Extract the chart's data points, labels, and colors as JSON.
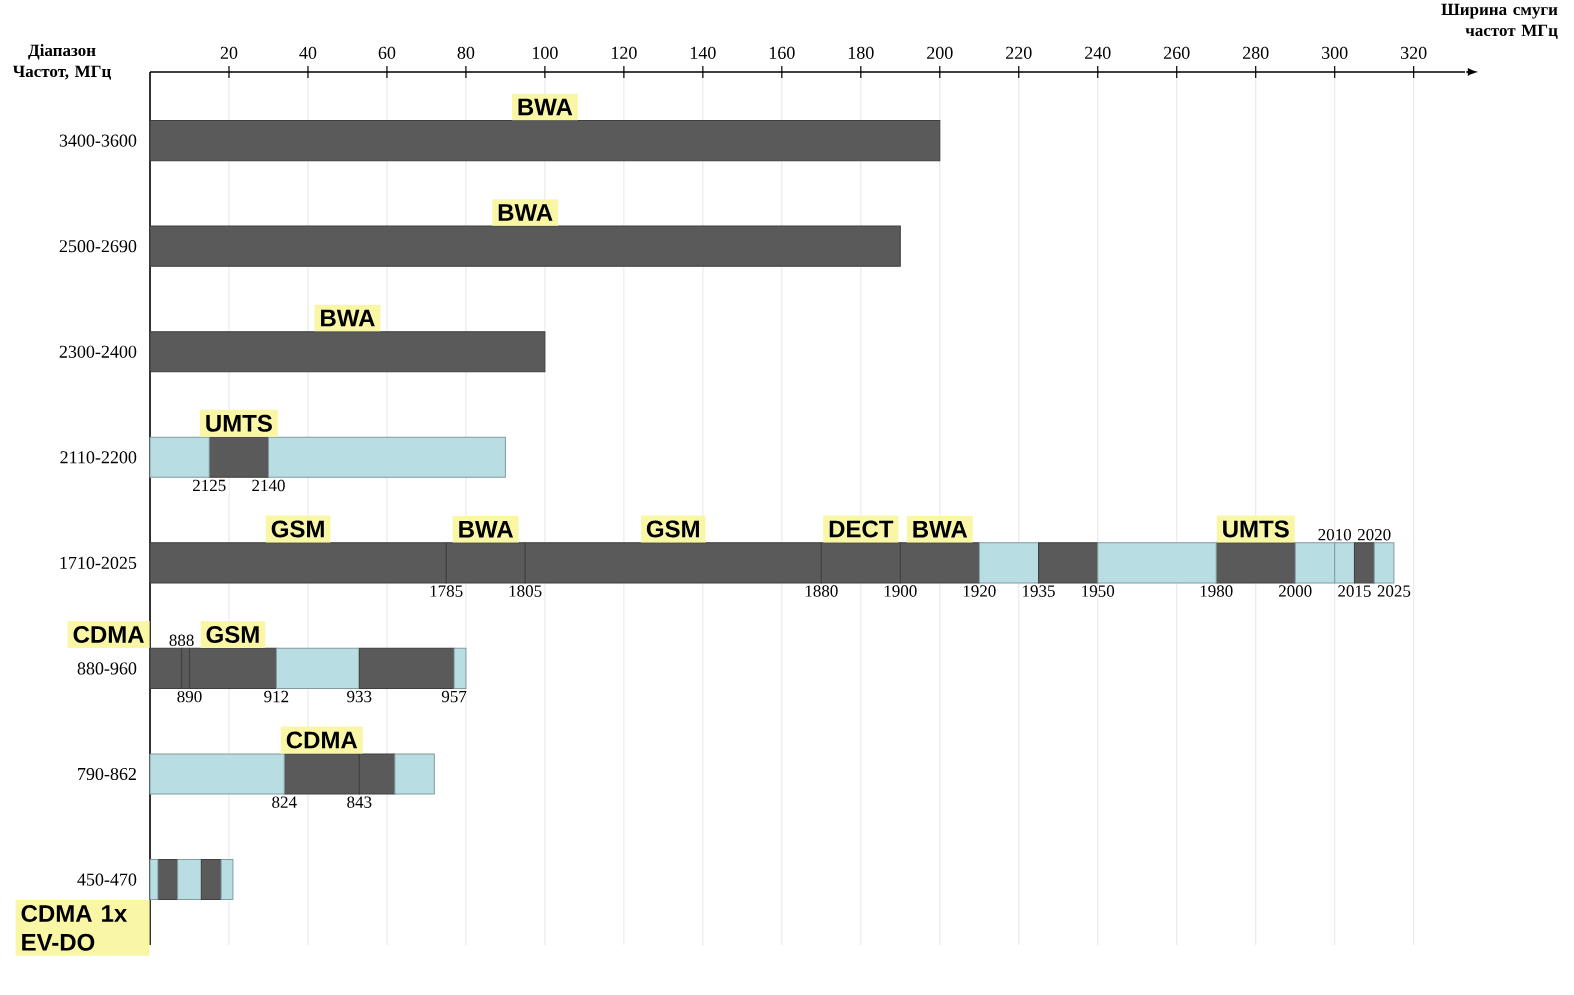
{
  "chart_data": {
    "type": "bar",
    "orientation": "horizontal",
    "xlabel": "Ширина смуги частот МГц",
    "ylabel": "Діапазон Частот, МГц",
    "categories": [
      "3400-3600",
      "2500-2690",
      "2300-2400",
      "2110-2200",
      "1710-2025",
      "880-960",
      "790-862",
      "450-470"
    ],
    "xlim": [
      0,
      333
    ],
    "xticks": [
      20,
      40,
      60,
      80,
      100,
      120,
      140,
      160,
      180,
      200,
      220,
      240,
      260,
      280,
      300,
      320
    ],
    "grid": "x",
    "series": [
      {
        "name": "BWA",
        "color": "#5a5a5a",
        "values": [
          200,
          190,
          100,
          null,
          20,
          null,
          null,
          null
        ],
        "base": [
          0,
          0,
          0,
          null,
          75,
          null,
          null,
          null
        ]
      },
      {
        "name": "BWA",
        "color": "#5a5a5a",
        "values": [
          null,
          null,
          null,
          null,
          20,
          null,
          null,
          null
        ],
        "base": [
          null,
          null,
          null,
          null,
          190,
          null,
          null,
          null
        ]
      },
      {
        "name": "GSM",
        "color": "#5a5a5a",
        "values": [
          null,
          null,
          null,
          null,
          75,
          22,
          null,
          null
        ],
        "base": [
          null,
          null,
          null,
          null,
          0,
          10,
          null,
          null
        ]
      },
      {
        "name": "GSM",
        "color": "#5a5a5a",
        "values": [
          null,
          null,
          null,
          null,
          75,
          null,
          null,
          null
        ],
        "base": [
          null,
          null,
          null,
          null,
          95,
          null,
          null,
          null
        ]
      },
      {
        "name": "DECT",
        "color": "#5a5a5a",
        "values": [
          null,
          null,
          null,
          null,
          20,
          null,
          null,
          null
        ],
        "base": [
          null,
          null,
          null,
          null,
          170,
          null,
          null,
          null
        ]
      },
      {
        "name": "UMTS",
        "color": "#5a5a5a",
        "values": [
          null,
          null,
          null,
          15,
          20,
          null,
          null,
          null
        ],
        "base": [
          null,
          null,
          null,
          15,
          270,
          null,
          null,
          null
        ]
      },
      {
        "name": "CDMA",
        "color": "#5a5a5a",
        "values": [
          null,
          null,
          null,
          null,
          null,
          8,
          19,
          null
        ],
        "base": [
          null,
          null,
          null,
          null,
          null,
          0,
          34,
          null
        ]
      },
      {
        "name": "CDMA 1x EV-DO",
        "color": "#5a5a5a",
        "values": [
          null,
          null,
          null,
          null,
          null,
          null,
          null,
          5
        ],
        "base": [
          null,
          null,
          null,
          null,
          null,
          null,
          null,
          2
        ]
      },
      {
        "values": [
          null,
          null,
          null,
          15,
          15,
          2,
          34,
          2
        ],
        "base": [
          null,
          null,
          null,
          0,
          210,
          8,
          0,
          0
        ],
        "colors": [
          null,
          null,
          null,
          "#b8dde3",
          "#b8dde3",
          "#5a5a5a",
          "#b8dde3",
          "#b8dde3"
        ]
      },
      {
        "values": [
          null,
          null,
          null,
          60,
          15,
          21,
          9,
          6
        ],
        "base": [
          null,
          null,
          null,
          30,
          225,
          32,
          53,
          7
        ],
        "colors": [
          null,
          null,
          null,
          "#b8dde3",
          "#5a5a5a",
          "#b8dde3",
          "#5a5a5a",
          "#b8dde3"
        ]
      },
      {
        "values": [
          null,
          null,
          null,
          null,
          30,
          24,
          10,
          5
        ],
        "base": [
          null,
          null,
          null,
          null,
          240,
          53,
          62,
          13
        ],
        "colors": [
          null,
          null,
          null,
          null,
          "#b8dde3",
          "#5a5a5a",
          "#b8dde3",
          "#5a5a5a"
        ]
      },
      {
        "values": [
          null,
          null,
          null,
          null,
          10,
          3,
          null,
          3
        ],
        "base": [
          null,
          null,
          null,
          null,
          290,
          77,
          null,
          18
        ],
        "colors": [
          null,
          null,
          null,
          null,
          "#b8dde3",
          "#b8dde3",
          null,
          "#b8dde3"
        ]
      },
      {
        "values": [
          null,
          null,
          null,
          null,
          5,
          null,
          null,
          null
        ],
        "base": [
          null,
          null,
          null,
          null,
          300,
          null,
          null,
          null
        ],
        "colors": [
          null,
          null,
          null,
          null,
          "#b8dde3",
          null,
          null,
          null
        ]
      },
      {
        "values": [
          null,
          null,
          null,
          null,
          5,
          null,
          null,
          null
        ],
        "base": [
          null,
          null,
          null,
          null,
          305,
          null,
          null,
          null
        ],
        "colors": [
          null,
          null,
          null,
          null,
          "#5a5a5a",
          null,
          null,
          null
        ]
      },
      {
        "values": [
          null,
          null,
          null,
          null,
          5,
          null,
          null,
          null
        ],
        "base": [
          null,
          null,
          null,
          null,
          310,
          null,
          null,
          null
        ],
        "colors": [
          null,
          null,
          null,
          null,
          "#b8dde3",
          null,
          null,
          null
        ]
      }
    ],
    "annotations": [
      {
        "text": "2125",
        "x": 15,
        "y": "2110-2200"
      },
      {
        "text": "2140",
        "x": 30,
        "y": "2110-2200"
      },
      {
        "text": "1785",
        "x": 75,
        "y": "1710-2025"
      },
      {
        "text": "1805",
        "x": 95,
        "y": "1710-2025"
      },
      {
        "text": "1880",
        "x": 170,
        "y": "1710-2025"
      },
      {
        "text": "1900",
        "x": 190,
        "y": "1710-2025"
      },
      {
        "text": "1920",
        "x": 210,
        "y": "1710-2025"
      },
      {
        "text": "1935",
        "x": 225,
        "y": "1710-2025"
      },
      {
        "text": "1950",
        "x": 240,
        "y": "1710-2025"
      },
      {
        "text": "1980",
        "x": 270,
        "y": "1710-2025"
      },
      {
        "text": "2000",
        "x": 290,
        "y": "1710-2025"
      },
      {
        "text": "2010",
        "x": 300,
        "y": "1710-2025"
      },
      {
        "text": "2015",
        "x": 305,
        "y": "1710-2025"
      },
      {
        "text": "2020",
        "x": 310,
        "y": "1710-2025"
      },
      {
        "text": "2025",
        "x": 315,
        "y": "1710-2025"
      },
      {
        "text": "888",
        "x": 8,
        "y": "880-960"
      },
      {
        "text": "890",
        "x": 10,
        "y": "880-960"
      },
      {
        "text": "912",
        "x": 32,
        "y": "880-960"
      },
      {
        "text": "933",
        "x": 53,
        "y": "880-960"
      },
      {
        "text": "957",
        "x": 77,
        "y": "880-960"
      },
      {
        "text": "824",
        "x": 34,
        "y": "790-862"
      },
      {
        "text": "843",
        "x": 53,
        "y": "790-862"
      }
    ]
  }
}
